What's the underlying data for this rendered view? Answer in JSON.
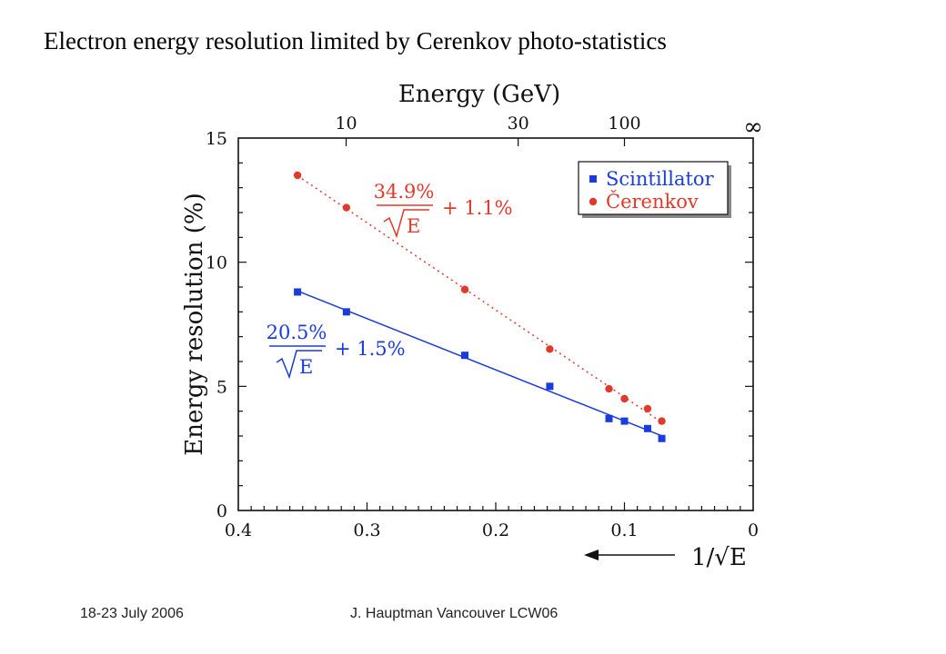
{
  "slide": {
    "title": "Electron energy resolution limited by Cerenkov photo-statistics",
    "footer_date": "18-23 July 2006",
    "footer_author": "J. Hauptman Vancouver LCW06"
  },
  "colors": {
    "scintillator": "#1a3cdc",
    "cerenkov": "#e03a2a",
    "axis": "#111111"
  },
  "chart_data": {
    "type": "scatter",
    "title": "",
    "ylabel": "Energy resolution (%)",
    "xlabel_bottom": "1/√E",
    "xlabel_top": "Energy (GeV)",
    "xlim": [
      0.4,
      0
    ],
    "ylim": [
      0,
      15
    ],
    "x_ticks": [
      0.4,
      0.3,
      0.2,
      0.1,
      0
    ],
    "x_tick_labels": [
      "0.4",
      "0.3",
      "0.2",
      "0.1",
      "0"
    ],
    "y_ticks": [
      0,
      5,
      10,
      15
    ],
    "y_tick_labels": [
      "0",
      "5",
      "10",
      "15"
    ],
    "top_ticks": [
      {
        "label": "10",
        "energy_gev": 10
      },
      {
        "label": "30",
        "energy_gev": 30
      },
      {
        "label": "100",
        "energy_gev": 100
      }
    ],
    "top_infinity_label": "∞",
    "grid": false,
    "legend_position": "top-right",
    "series": [
      {
        "name": "Scintillator",
        "marker": "square",
        "line": "solid",
        "fit": {
          "stochastic": 20.5,
          "constant": 1.5
        },
        "x": [
          0.354,
          0.316,
          0.224,
          0.158,
          0.112,
          0.1,
          0.082,
          0.071
        ],
        "y": [
          8.8,
          8.0,
          6.25,
          5.0,
          3.7,
          3.6,
          3.3,
          2.9
        ]
      },
      {
        "name": "Čerenkov",
        "marker": "circle",
        "line": "dotted",
        "fit": {
          "stochastic": 34.9,
          "constant": 1.1
        },
        "x": [
          0.354,
          0.316,
          0.224,
          0.158,
          0.112,
          0.1,
          0.082,
          0.071
        ],
        "y": [
          13.5,
          12.2,
          8.9,
          6.5,
          4.9,
          4.5,
          4.1,
          3.6
        ]
      }
    ],
    "annotations": [
      {
        "series": 1,
        "numerator": "34.9%",
        "radicand": "E",
        "suffix": "+ 1.1%"
      },
      {
        "series": 0,
        "numerator": "20.5%",
        "radicand": "E",
        "suffix": "+ 1.5%"
      }
    ]
  }
}
